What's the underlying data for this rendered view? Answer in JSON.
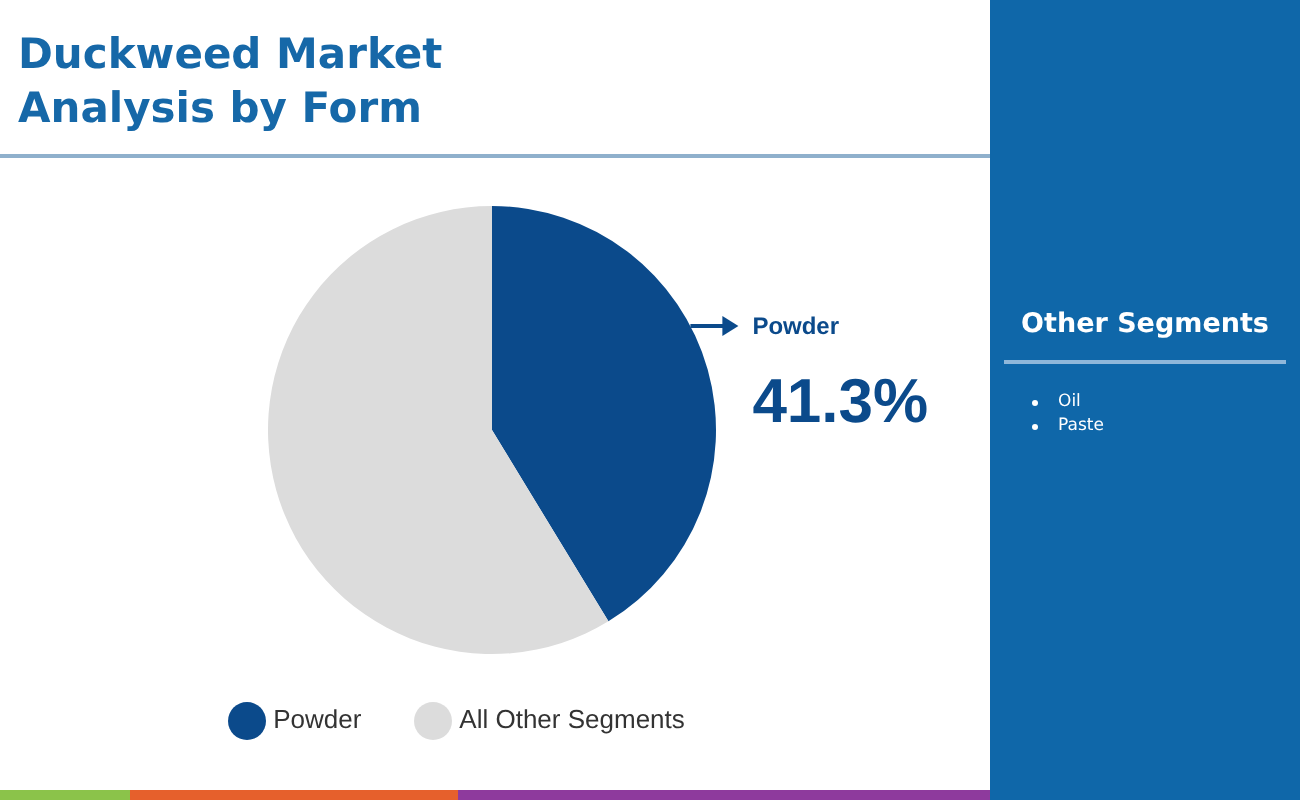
{
  "chart_data": {
    "type": "pie",
    "title": "Duckweed Market Analysis by Form",
    "categories": [
      "Powder",
      "All Other Segments"
    ],
    "values": [
      41.3,
      58.7
    ],
    "colors": [
      "#0b4a8b",
      "#dcdcdc"
    ],
    "value_labels": [
      "41.3%",
      null
    ],
    "legend": "bottom",
    "annotations": [
      "Other Segments",
      "Oil",
      "Paste"
    ]
  }
}
